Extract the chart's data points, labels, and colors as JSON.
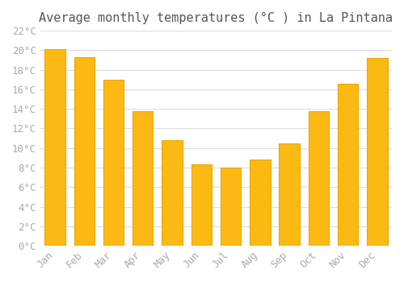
{
  "title": "Average monthly temperatures (°C ) in La Pintana",
  "months": [
    "Jan",
    "Feb",
    "Mar",
    "Apr",
    "May",
    "Jun",
    "Jul",
    "Aug",
    "Sep",
    "Oct",
    "Nov",
    "Dec"
  ],
  "values": [
    20.1,
    19.3,
    17.0,
    13.8,
    10.8,
    8.3,
    8.0,
    8.8,
    10.5,
    13.8,
    16.6,
    19.2
  ],
  "bar_color": "#FDB913",
  "bar_edge_color": "#E8A800",
  "ylim": [
    0,
    22
  ],
  "ytick_step": 2,
  "background_color": "#ffffff",
  "grid_color": "#dddddd",
  "title_fontsize": 11,
  "tick_fontsize": 9,
  "tick_label_color": "#aaaaaa",
  "title_color": "#555555"
}
